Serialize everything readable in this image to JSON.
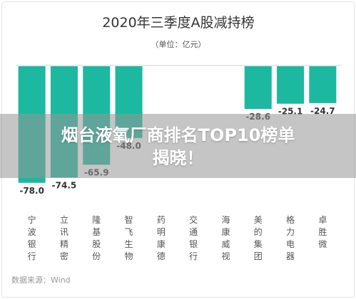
{
  "chart_data": {
    "type": "bar",
    "title": "2020年三季度A股减持榜",
    "subtitle": "（单位：亿元）",
    "categories": [
      "宁波银行",
      "立讯精密",
      "隆基股份",
      "智飞生物",
      "药明康德",
      "交通银行",
      "海康威视",
      "美的集团",
      "格力电器",
      "卓胜微"
    ],
    "values": [
      -78.0,
      -74.5,
      -65.9,
      -48.0,
      null,
      null,
      null,
      -28.6,
      -25.1,
      -24.7
    ],
    "value_labels": [
      "-78.0",
      "-74.5",
      "-65.9",
      "-48.0",
      "",
      "",
      "",
      "-28.6",
      "-25.1",
      "-24.7"
    ],
    "ylim": [
      -80,
      0
    ],
    "bar_color": "#1db8a0",
    "grid": false,
    "source": "数据来源：Wind"
  },
  "overlay": {
    "line1": "烟台液氧厂商排名TOP10榜单",
    "line2": "揭晓！"
  }
}
